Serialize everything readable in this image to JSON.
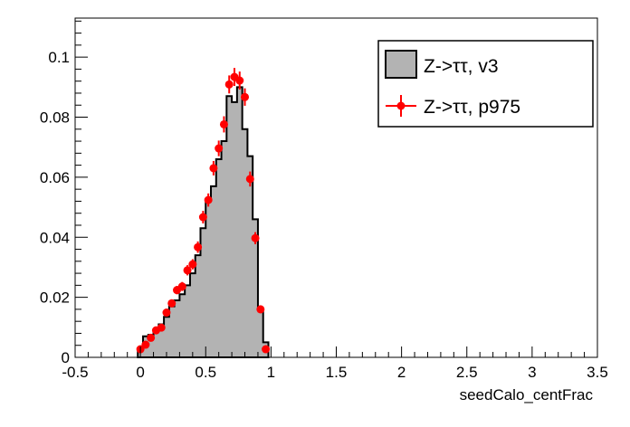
{
  "chart_data": {
    "type": "bar",
    "title": "",
    "xlabel": "seedCalo_centFrac",
    "ylabel": "",
    "xlim": [
      -0.5,
      3.5
    ],
    "ylim": [
      0,
      0.113
    ],
    "xticks": [
      "-0.5",
      "0",
      "0.5",
      "1",
      "1.5",
      "2",
      "2.5",
      "3",
      "3.5"
    ],
    "yticks": [
      "0",
      "0.02",
      "0.04",
      "0.06",
      "0.08",
      "0.1"
    ],
    "bin_width": 0.04,
    "legend_placement": "top-right",
    "series": [
      {
        "name": "Z->ττ, v3",
        "style": "filled-histogram",
        "color": "#b3b3b3",
        "x": [
          0,
          0.04,
          0.08,
          0.12,
          0.16,
          0.2,
          0.24,
          0.28,
          0.32,
          0.36,
          0.4,
          0.44,
          0.48,
          0.52,
          0.56,
          0.6,
          0.64,
          0.68,
          0.72,
          0.76,
          0.8,
          0.84,
          0.88,
          0.92,
          0.96
        ],
        "values": [
          0.0025,
          0.007,
          0.0075,
          0.009,
          0.011,
          0.0135,
          0.017,
          0.019,
          0.021,
          0.024,
          0.028,
          0.034,
          0.043,
          0.052,
          0.057,
          0.066,
          0.072,
          0.087,
          0.085,
          0.09,
          0.076,
          0.067,
          0.046,
          0.016,
          0.005
        ]
      },
      {
        "name": "Z->ττ, p975",
        "style": "markers-errorbars",
        "color": "#ff0000",
        "x": [
          0,
          0.04,
          0.08,
          0.12,
          0.16,
          0.2,
          0.24,
          0.28,
          0.32,
          0.36,
          0.4,
          0.44,
          0.48,
          0.52,
          0.56,
          0.6,
          0.64,
          0.68,
          0.72,
          0.76,
          0.8,
          0.84,
          0.88,
          0.92,
          0.96
        ],
        "values": [
          0.0027,
          0.0042,
          0.0065,
          0.009,
          0.0099,
          0.0149,
          0.018,
          0.0224,
          0.0236,
          0.029,
          0.031,
          0.0367,
          0.0467,
          0.0524,
          0.063,
          0.0696,
          0.0776,
          0.0909,
          0.0934,
          0.0922,
          0.0867,
          0.0594,
          0.0397,
          0.016,
          0.0027
        ],
        "errors": [
          0.0005,
          0.0006,
          0.0008,
          0.0009,
          0.001,
          0.0012,
          0.0013,
          0.0014,
          0.0015,
          0.0017,
          0.0017,
          0.0019,
          0.0021,
          0.0022,
          0.0024,
          0.0026,
          0.0027,
          0.003,
          0.003,
          0.003,
          0.0029,
          0.0025,
          0.002,
          0.0013,
          0.0005
        ]
      }
    ]
  }
}
